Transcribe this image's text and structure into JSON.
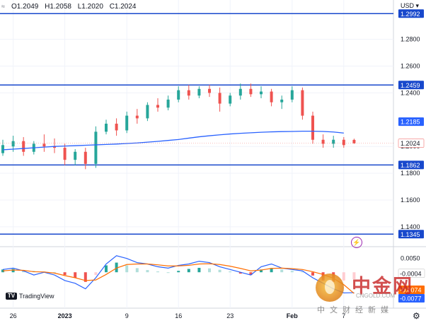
{
  "header": {
    "symbol_icon": "compare-symbol-icon",
    "ohlc": {
      "open": "O1.2049",
      "high": "H1.2058",
      "low": "L1.2020",
      "close": "C1.2024"
    },
    "currency": "USD",
    "currency_icon": "chevron-down-icon"
  },
  "branding": {
    "logo_text": "TradingView",
    "logo_icon": "tradingview-logo-icon"
  },
  "alert_icon": "lightning-icon",
  "settings_icon": "gear-icon",
  "watermark": {
    "brand": "中金网",
    "url": "CNGOLD.COM",
    "tagline": "中文财经新媒",
    "seal_icon": "cngold-seal-icon"
  },
  "colors": {
    "up": "#26a69a",
    "down": "#ef5350",
    "hline": "#1848cc",
    "ma": "#2962ff",
    "macd": "#2962ff",
    "signal": "#ff6d00",
    "hist_up_strong": "#26a69a",
    "hist_up_weak": "#b2dfdb",
    "hist_down_strong": "#ef5350",
    "hist_down_weak": "#ffcdd2"
  },
  "chart_data": [
    {
      "type": "candlestick",
      "y_ticks": [
        "1.2800",
        "1.2600",
        "1.2400",
        "1.2000",
        "1.1800",
        "1.1600",
        "1.1400"
      ],
      "ylim": [
        1.132,
        1.302
      ],
      "x_ticks": [
        "26",
        "2023",
        "9",
        "16",
        "23",
        "Feb",
        "7"
      ],
      "x_tick_index": [
        1,
        6,
        12,
        17,
        22,
        28,
        33
      ],
      "horizontal_levels": [
        {
          "value": 1.2992,
          "label": "1.2992"
        },
        {
          "value": 1.2459,
          "label": "1.2459"
        },
        {
          "value": 1.1862,
          "label": "1.1862"
        },
        {
          "value": 1.1345,
          "label": "1.1345"
        }
      ],
      "moving_average": {
        "label": "1.2185",
        "values": [
          1.1975,
          1.198,
          1.1985,
          1.199,
          1.1995,
          1.2,
          1.2003,
          1.2006,
          1.2009,
          1.2012,
          1.2015,
          1.2018,
          1.2022,
          1.2026,
          1.2032,
          1.2038,
          1.2045,
          1.2052,
          1.2062,
          1.2072,
          1.208,
          1.2087,
          1.2093,
          1.2098,
          1.2102,
          1.2106,
          1.2109,
          1.2111,
          1.2112,
          1.2114,
          1.2114,
          1.2112,
          1.2108,
          1.21,
          1.2185
        ]
      },
      "last_price": "1.2024",
      "candles": [
        {
          "o": 1.195,
          "h": 1.205,
          "l": 1.193,
          "c": 1.201
        },
        {
          "o": 1.2,
          "h": 1.208,
          "l": 1.196,
          "c": 1.204
        },
        {
          "o": 1.204,
          "h": 1.207,
          "l": 1.193,
          "c": 1.196
        },
        {
          "o": 1.196,
          "h": 1.204,
          "l": 1.194,
          "c": 1.202
        },
        {
          "o": 1.202,
          "h": 1.209,
          "l": 1.196,
          "c": 1.2
        },
        {
          "o": 1.2,
          "h": 1.206,
          "l": 1.195,
          "c": 1.199
        },
        {
          "o": 1.199,
          "h": 1.202,
          "l": 1.186,
          "c": 1.19
        },
        {
          "o": 1.19,
          "h": 1.198,
          "l": 1.186,
          "c": 1.196
        },
        {
          "o": 1.196,
          "h": 1.199,
          "l": 1.183,
          "c": 1.187
        },
        {
          "o": 1.187,
          "h": 1.215,
          "l": 1.184,
          "c": 1.211
        },
        {
          "o": 1.211,
          "h": 1.22,
          "l": 1.209,
          "c": 1.217
        },
        {
          "o": 1.217,
          "h": 1.221,
          "l": 1.208,
          "c": 1.212
        },
        {
          "o": 1.212,
          "h": 1.226,
          "l": 1.21,
          "c": 1.223
        },
        {
          "o": 1.223,
          "h": 1.228,
          "l": 1.217,
          "c": 1.221
        },
        {
          "o": 1.221,
          "h": 1.233,
          "l": 1.219,
          "c": 1.231
        },
        {
          "o": 1.231,
          "h": 1.236,
          "l": 1.226,
          "c": 1.229
        },
        {
          "o": 1.229,
          "h": 1.238,
          "l": 1.227,
          "c": 1.235
        },
        {
          "o": 1.235,
          "h": 1.245,
          "l": 1.233,
          "c": 1.242
        },
        {
          "o": 1.242,
          "h": 1.246,
          "l": 1.235,
          "c": 1.238
        },
        {
          "o": 1.238,
          "h": 1.245,
          "l": 1.236,
          "c": 1.243
        },
        {
          "o": 1.243,
          "h": 1.246,
          "l": 1.237,
          "c": 1.24
        },
        {
          "o": 1.24,
          "h": 1.244,
          "l": 1.226,
          "c": 1.232
        },
        {
          "o": 1.232,
          "h": 1.24,
          "l": 1.23,
          "c": 1.238
        },
        {
          "o": 1.238,
          "h": 1.247,
          "l": 1.235,
          "c": 1.243
        },
        {
          "o": 1.243,
          "h": 1.247,
          "l": 1.237,
          "c": 1.239
        },
        {
          "o": 1.239,
          "h": 1.245,
          "l": 1.236,
          "c": 1.241
        },
        {
          "o": 1.241,
          "h": 1.243,
          "l": 1.23,
          "c": 1.233
        },
        {
          "o": 1.233,
          "h": 1.238,
          "l": 1.228,
          "c": 1.235
        },
        {
          "o": 1.235,
          "h": 1.245,
          "l": 1.233,
          "c": 1.242
        },
        {
          "o": 1.242,
          "h": 1.244,
          "l": 1.22,
          "c": 1.223
        },
        {
          "o": 1.223,
          "h": 1.226,
          "l": 1.202,
          "c": 1.205
        },
        {
          "o": 1.205,
          "h": 1.209,
          "l": 1.199,
          "c": 1.202
        },
        {
          "o": 1.202,
          "h": 1.208,
          "l": 1.199,
          "c": 1.205
        },
        {
          "o": 1.205,
          "h": 1.207,
          "l": 1.199,
          "c": 1.201
        },
        {
          "o": 1.2049,
          "h": 1.2058,
          "l": 1.202,
          "c": 1.2024
        }
      ]
    },
    {
      "type": "macd",
      "y_ticks": [
        "0.0050",
        "-0.0004",
        "-0.0074",
        "-0.0077"
      ],
      "ylim": [
        -0.012,
        0.008
      ],
      "histogram": [
        0.001,
        0.0012,
        0.0008,
        0.0005,
        0.0003,
        0.0,
        -0.001,
        -0.002,
        -0.0035,
        -0.001,
        0.0025,
        0.0035,
        0.0025,
        0.0015,
        0.0008,
        0.0003,
        0.0,
        0.0005,
        0.0012,
        0.0016,
        0.0014,
        0.0009,
        0.0003,
        -0.0005,
        -0.001,
        0.001,
        0.0015,
        0.001,
        0.0005,
        0.0002,
        -0.0012,
        -0.003,
        -0.0035,
        -0.003,
        -0.0025
      ],
      "macd": [
        0.001,
        0.0015,
        0.0005,
        -0.001,
        0.0,
        -0.001,
        -0.003,
        -0.004,
        -0.006,
        -0.002,
        0.003,
        0.006,
        0.005,
        0.0035,
        0.003,
        0.002,
        0.0015,
        0.0025,
        0.003,
        0.004,
        0.0035,
        0.002,
        0.001,
        0.0,
        -0.001,
        0.002,
        0.003,
        0.0015,
        0.001,
        0.0005,
        -0.002,
        -0.004,
        -0.006,
        -0.0075,
        -0.0074
      ],
      "signal": [
        0.0005,
        0.0008,
        0.0007,
        0.0002,
        0.0001,
        -0.0003,
        -0.0012,
        -0.002,
        -0.003,
        -0.0028,
        -0.0008,
        0.0015,
        0.0028,
        0.003,
        0.003,
        0.0027,
        0.0023,
        0.0023,
        0.0025,
        0.003,
        0.0031,
        0.0028,
        0.0022,
        0.0014,
        0.0005,
        0.0008,
        0.0014,
        0.0015,
        0.0013,
        0.001,
        0.0002,
        -0.0008,
        -0.0022,
        -0.0045,
        -0.0077
      ]
    }
  ]
}
